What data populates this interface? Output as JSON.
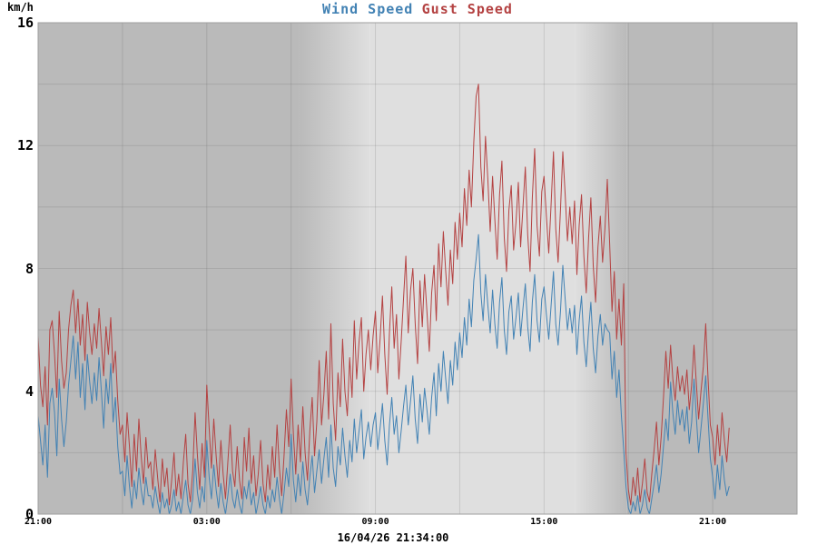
{
  "chart_data": {
    "type": "line",
    "title": "Wind Speed Gust Speed",
    "ylabel": "km/h",
    "timestamp": "16/04/26 21:34:00",
    "ylim": [
      0,
      16
    ],
    "y_ticks": [
      0,
      4,
      8,
      12,
      16
    ],
    "y_grid_step": 2,
    "x_axis": {
      "domain_hours": [
        0,
        27
      ],
      "start_time_label": "21:00",
      "grid_step_hours": 3,
      "tick_hours": [
        0,
        6,
        12,
        18,
        24
      ],
      "tick_labels": [
        "21:00",
        "03:00",
        "09:00",
        "15:00",
        "21:00"
      ]
    },
    "sample_interval_minutes": 5,
    "grid_on": true,
    "legend_position": "title",
    "colors": {
      "night_band": "#bababa",
      "day_band": "#dfdfdf",
      "grid": "rgba(70,70,70,0.15)",
      "border": "#9e9e9e",
      "wind": "#4282b4",
      "gust": "#b44242"
    },
    "day_night": {
      "dawn_hours": [
        9.3,
        11.8
      ],
      "dusk_hours": [
        19.1,
        20.95
      ]
    },
    "series": [
      {
        "name": "Wind Speed",
        "color": "#4282b4",
        "values": [
          3.2,
          2.4,
          1.6,
          2.9,
          1.2,
          3.6,
          4.1,
          3.3,
          1.9,
          4.4,
          3.1,
          2.2,
          3.0,
          4.2,
          5.0,
          5.8,
          4.4,
          5.6,
          3.8,
          4.9,
          3.4,
          5.2,
          4.3,
          3.6,
          4.6,
          3.7,
          5.1,
          4.0,
          2.8,
          4.4,
          3.6,
          4.9,
          3.0,
          3.8,
          2.2,
          1.3,
          1.4,
          0.6,
          1.9,
          0.9,
          0.2,
          1.1,
          0.5,
          1.5,
          0.8,
          0.3,
          1.2,
          0.6,
          0.6,
          0.2,
          0.9,
          0.4,
          0.0,
          0.7,
          0.2,
          0.5,
          0.0,
          0.3,
          0.8,
          0.1,
          0.4,
          0.0,
          0.6,
          1.1,
          0.3,
          0.0,
          0.5,
          1.8,
          0.7,
          0.2,
          0.9,
          0.4,
          2.4,
          1.2,
          0.5,
          1.6,
          0.8,
          0.2,
          1.0,
          0.4,
          0.0,
          0.6,
          1.3,
          0.5,
          0.2,
          0.8,
          0.3,
          0.0,
          0.9,
          0.5,
          1.1,
          0.3,
          0.7,
          0.0,
          0.4,
          0.9,
          0.3,
          0.0,
          0.6,
          0.2,
          0.8,
          0.4,
          1.2,
          0.5,
          0.0,
          0.7,
          1.5,
          0.9,
          2.6,
          1.1,
          0.4,
          1.3,
          0.6,
          1.7,
          0.8,
          0.3,
          1.2,
          1.9,
          0.7,
          1.4,
          2.1,
          1.0,
          1.8,
          2.5,
          1.2,
          2.9,
          1.5,
          0.9,
          2.2,
          1.6,
          2.8,
          1.9,
          1.2,
          2.4,
          1.7,
          3.1,
          2.0,
          2.7,
          3.4,
          1.8,
          2.5,
          3.0,
          2.2,
          2.9,
          3.3,
          2.1,
          2.8,
          3.6,
          2.4,
          1.6,
          2.9,
          3.8,
          2.6,
          3.2,
          2.0,
          2.7,
          3.5,
          4.2,
          2.9,
          3.7,
          4.5,
          3.1,
          2.3,
          3.9,
          3.0,
          4.1,
          3.4,
          2.6,
          3.8,
          4.6,
          3.2,
          4.9,
          4.0,
          5.3,
          4.4,
          3.6,
          5.0,
          4.2,
          5.6,
          4.7,
          5.9,
          5.1,
          6.4,
          5.5,
          7.0,
          6.1,
          7.6,
          8.3,
          9.1,
          7.2,
          6.3,
          7.8,
          6.8,
          5.9,
          7.3,
          6.2,
          5.4,
          6.9,
          7.7,
          6.0,
          5.2,
          6.6,
          7.1,
          5.7,
          6.4,
          7.2,
          5.8,
          6.7,
          7.5,
          6.1,
          5.3,
          6.9,
          7.8,
          6.3,
          5.6,
          7.0,
          7.4,
          6.5,
          5.7,
          6.8,
          7.9,
          6.2,
          5.5,
          6.6,
          8.1,
          7.0,
          6.0,
          6.7,
          5.9,
          6.8,
          5.2,
          6.3,
          7.1,
          5.6,
          4.8,
          6.0,
          6.9,
          5.4,
          4.6,
          5.8,
          6.5,
          5.5,
          6.2,
          6.0,
          5.9,
          4.4,
          5.3,
          3.8,
          4.7,
          3.2,
          2.1,
          0.9,
          0.2,
          0.0,
          0.4,
          0.1,
          0.6,
          0.0,
          0.3,
          0.8,
          0.2,
          0.0,
          0.5,
          1.0,
          1.6,
          0.7,
          1.3,
          2.2,
          3.1,
          2.4,
          4.3,
          3.3,
          2.6,
          3.7,
          2.9,
          3.4,
          2.7,
          3.5,
          2.3,
          3.0,
          4.4,
          3.2,
          2.0,
          2.8,
          3.6,
          4.5,
          3.1,
          1.8,
          1.2,
          0.5,
          1.6,
          0.8,
          1.9,
          1.1,
          0.6,
          0.9
        ]
      },
      {
        "name": "Gust Speed",
        "color": "#b44242",
        "values": [
          5.8,
          4.2,
          3.5,
          4.8,
          2.9,
          6.0,
          6.3,
          5.2,
          3.8,
          6.6,
          5.0,
          4.1,
          4.6,
          6.0,
          6.8,
          7.3,
          5.9,
          7.0,
          5.5,
          6.5,
          5.0,
          6.9,
          5.9,
          5.2,
          6.2,
          5.4,
          6.7,
          5.6,
          4.5,
          6.1,
          5.2,
          6.4,
          4.6,
          5.3,
          3.7,
          2.6,
          2.9,
          1.7,
          3.3,
          2.2,
          0.9,
          2.6,
          1.4,
          3.1,
          1.9,
          1.0,
          2.5,
          1.5,
          1.7,
          0.8,
          2.1,
          1.2,
          0.4,
          1.8,
          0.9,
          1.5,
          0.3,
          1.1,
          2.0,
          0.6,
          1.3,
          0.5,
          1.7,
          2.6,
          1.0,
          0.4,
          1.4,
          3.3,
          1.9,
          0.8,
          2.3,
          1.2,
          4.2,
          2.8,
          1.5,
          3.1,
          1.9,
          0.9,
          2.4,
          1.3,
          0.5,
          1.7,
          2.9,
          1.4,
          0.9,
          2.2,
          1.1,
          0.5,
          2.5,
          1.4,
          2.8,
          1.0,
          1.9,
          0.6,
          1.3,
          2.4,
          1.0,
          0.4,
          1.6,
          0.8,
          2.2,
          1.2,
          2.9,
          1.5,
          0.6,
          1.9,
          3.4,
          2.2,
          4.4,
          2.6,
          1.3,
          2.9,
          1.7,
          3.5,
          2.0,
          1.1,
          2.7,
          3.8,
          1.9,
          3.0,
          5.0,
          2.9,
          3.9,
          5.3,
          3.1,
          6.2,
          3.6,
          2.4,
          4.6,
          3.5,
          5.7,
          4.0,
          3.2,
          5.1,
          3.8,
          6.3,
          4.4,
          5.6,
          6.4,
          4.0,
          5.2,
          6.0,
          4.7,
          5.8,
          6.6,
          4.6,
          5.7,
          7.1,
          5.2,
          3.9,
          5.9,
          7.4,
          5.4,
          6.5,
          4.4,
          5.6,
          7.0,
          8.4,
          5.9,
          7.3,
          8.0,
          6.2,
          4.9,
          7.6,
          6.1,
          7.8,
          6.6,
          5.3,
          7.2,
          8.1,
          6.3,
          8.8,
          7.4,
          9.2,
          7.9,
          6.8,
          8.6,
          7.5,
          9.5,
          8.3,
          9.8,
          8.7,
          10.6,
          9.4,
          11.2,
          10.0,
          12.1,
          13.6,
          14.0,
          11.3,
          10.2,
          12.3,
          10.9,
          9.2,
          11.0,
          9.6,
          8.3,
          10.4,
          11.5,
          9.0,
          7.9,
          9.9,
          10.7,
          8.6,
          9.5,
          10.8,
          8.7,
          10.0,
          11.3,
          9.1,
          7.9,
          10.3,
          11.9,
          9.4,
          8.4,
          10.5,
          11.0,
          9.7,
          8.5,
          10.1,
          11.8,
          9.3,
          8.2,
          9.9,
          11.8,
          10.4,
          8.9,
          10.0,
          8.8,
          10.2,
          7.8,
          9.4,
          10.4,
          8.4,
          7.2,
          9.0,
          10.3,
          8.1,
          6.9,
          8.7,
          9.7,
          8.2,
          9.3,
          10.9,
          8.8,
          6.6,
          7.9,
          5.7,
          7.0,
          5.5,
          7.5,
          2.0,
          0.8,
          0.3,
          1.2,
          0.6,
          1.5,
          0.4,
          1.0,
          1.8,
          0.7,
          0.4,
          1.3,
          2.1,
          3.0,
          1.6,
          2.5,
          3.8,
          5.3,
          4.1,
          5.5,
          4.4,
          3.7,
          4.8,
          4.0,
          4.5,
          3.9,
          4.7,
          3.4,
          4.2,
          5.5,
          4.3,
          3.1,
          4.0,
          4.8,
          6.2,
          4.4,
          2.9,
          2.5,
          1.6,
          2.9,
          1.9,
          3.3,
          2.4,
          1.7,
          2.8
        ]
      }
    ]
  }
}
